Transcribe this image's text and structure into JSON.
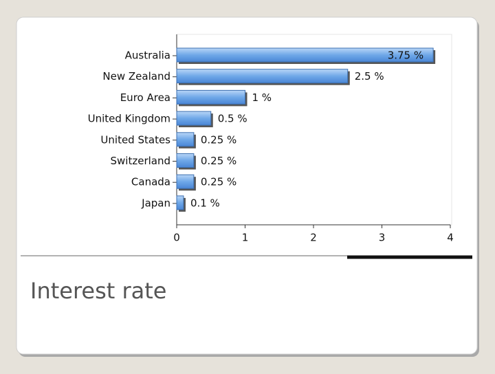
{
  "chart_data": {
    "type": "bar",
    "orientation": "horizontal",
    "categories": [
      "Australia",
      "New Zealand",
      "Euro Area",
      "United Kingdom",
      "United States",
      "Switzerland",
      "Canada",
      "Japan"
    ],
    "values": [
      3.75,
      2.5,
      1,
      0.5,
      0.25,
      0.25,
      0.25,
      0.1
    ],
    "value_labels": [
      "3.75 %",
      "2.5 %",
      "1 %",
      "0.5 %",
      "0.25 %",
      "0.25 %",
      "0.25 %",
      "0.1 %"
    ],
    "color": "#6fa8e8",
    "xlim": [
      0,
      4
    ],
    "xticks": [
      0,
      1,
      2,
      3,
      4
    ],
    "caption": "Interest rate"
  }
}
